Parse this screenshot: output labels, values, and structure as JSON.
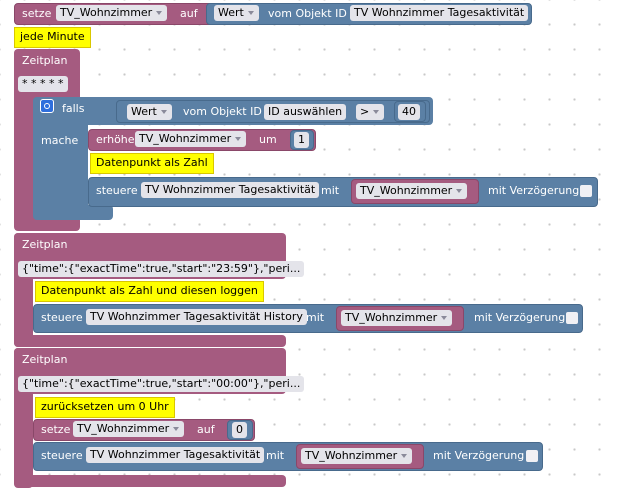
{
  "set_block": {
    "keyword": "setze",
    "variable": "TV_Wohnzimmer",
    "to": "auf",
    "value_block": {
      "attribute": "Wert",
      "of": "vom Objekt ID",
      "object_id": "TV Wohnzimmer Tagesaktivität"
    }
  },
  "comment_every_minute": "jede Minute",
  "schedule_1": {
    "label": "Zeitplan",
    "cron": "* * * * *",
    "if_block": {
      "keyword": "falls",
      "condition": {
        "attribute": "Wert",
        "of": "vom Objekt ID",
        "object_id": "ID auswählen",
        "operator": ">",
        "operand": 40
      },
      "do": "mache",
      "increment_block": {
        "keyword": "erhöhe",
        "variable": "TV_Wohnzimmer",
        "by": "um",
        "amount": 1
      },
      "comment": "Datenpunkt als Zahl",
      "control_block": {
        "keyword": "steuere",
        "object_id": "TV Wohnzimmer Tagesaktivität",
        "with": "mit",
        "variable": "TV_Wohnzimmer",
        "delay": "mit Verzögerung"
      }
    }
  },
  "schedule_2": {
    "label": "Zeitplan",
    "rule": "{\"time\":{\"exactTime\":true,\"start\":\"23:59\"},\"peri...",
    "comment": "Datenpunkt als Zahl und diesen loggen",
    "control_block": {
      "keyword": "steuere",
      "object_id": "TV Wohnzimmer Tagesaktivität History",
      "with": "mit",
      "variable": "TV_Wohnzimmer",
      "delay": "mit Verzögerung"
    }
  },
  "schedule_3": {
    "label": "Zeitplan",
    "rule": "{\"time\":{\"exactTime\":true,\"start\":\"00:00\"},\"peri...",
    "comment": "zurücksetzen um 0 Uhr",
    "set_block": {
      "keyword": "setze",
      "variable": "TV_Wohnzimmer",
      "to": "auf",
      "value": 0
    },
    "control_block": {
      "keyword": "steuere",
      "object_id": "TV Wohnzimmer Tagesaktivität",
      "with": "mit",
      "variable": "TV_Wohnzimmer",
      "delay": "mit Verzögerung"
    }
  }
}
